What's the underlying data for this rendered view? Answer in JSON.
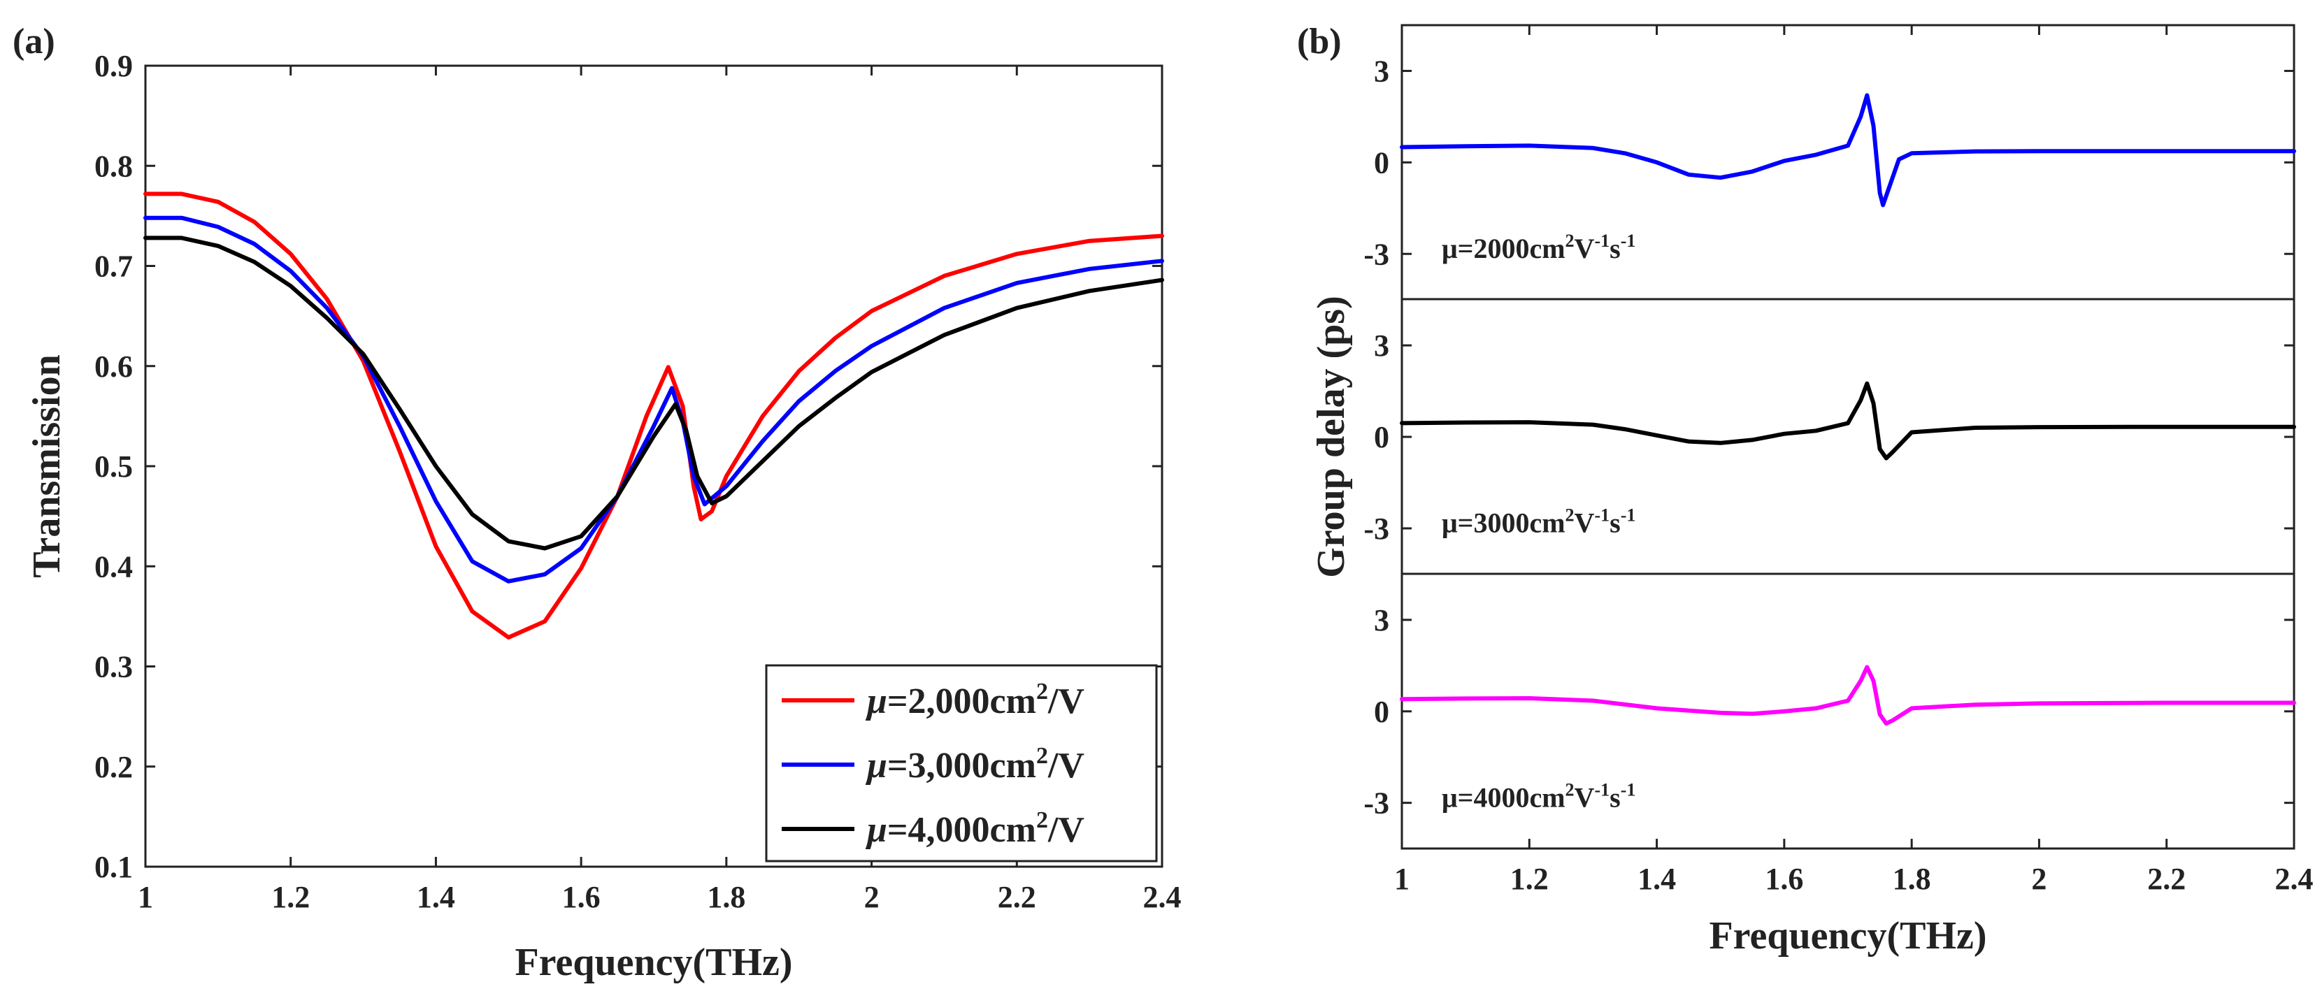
{
  "panel_a_label": "(a)",
  "panel_b_label": "(b)",
  "chart_data": [
    {
      "type": "line",
      "panel": "(a)",
      "xlabel": "Frequency(THz)",
      "ylabel": "Transmission",
      "xlim": [
        1,
        2.4
      ],
      "ylim": [
        0.1,
        0.9
      ],
      "xticks": [
        "1",
        "1.2",
        "1.4",
        "1.6",
        "1.8",
        "2",
        "2.2",
        "2.4"
      ],
      "yticks": [
        "0.1",
        "0.2",
        "0.3",
        "0.4",
        "0.5",
        "0.6",
        "0.7",
        "0.8",
        "0.9"
      ],
      "legend_position": "bottom-right",
      "series": [
        {
          "name": "μ=2,000cm²/V",
          "legend": {
            "prefix": "μ",
            "main": "=2,000cm",
            "sup": "2",
            "post": "/V"
          },
          "color": "#ff0000",
          "points": [
            [
              1,
              0.772
            ],
            [
              1.05,
              0.772
            ],
            [
              1.1,
              0.764
            ],
            [
              1.15,
              0.744
            ],
            [
              1.2,
              0.712
            ],
            [
              1.25,
              0.667
            ],
            [
              1.3,
              0.605
            ],
            [
              1.35,
              0.515
            ],
            [
              1.4,
              0.42
            ],
            [
              1.45,
              0.355
            ],
            [
              1.5,
              0.329
            ],
            [
              1.55,
              0.345
            ],
            [
              1.6,
              0.398
            ],
            [
              1.65,
              0.47
            ],
            [
              1.69,
              0.55
            ],
            [
              1.72,
              0.599
            ],
            [
              1.74,
              0.56
            ],
            [
              1.755,
              0.48
            ],
            [
              1.765,
              0.447
            ],
            [
              1.78,
              0.455
            ],
            [
              1.8,
              0.49
            ],
            [
              1.85,
              0.55
            ],
            [
              1.9,
              0.595
            ],
            [
              1.95,
              0.628
            ],
            [
              2,
              0.655
            ],
            [
              2.1,
              0.69
            ],
            [
              2.2,
              0.712
            ],
            [
              2.3,
              0.725
            ],
            [
              2.4,
              0.73
            ]
          ]
        },
        {
          "name": "μ=3,000cm²/V",
          "legend": {
            "prefix": "μ",
            "main": "=3,000cm",
            "sup": "2",
            "post": "/V"
          },
          "color": "#0000ff",
          "points": [
            [
              1,
              0.748
            ],
            [
              1.05,
              0.748
            ],
            [
              1.1,
              0.739
            ],
            [
              1.15,
              0.722
            ],
            [
              1.2,
              0.695
            ],
            [
              1.25,
              0.658
            ],
            [
              1.3,
              0.61
            ],
            [
              1.35,
              0.54
            ],
            [
              1.4,
              0.465
            ],
            [
              1.45,
              0.405
            ],
            [
              1.5,
              0.385
            ],
            [
              1.55,
              0.392
            ],
            [
              1.6,
              0.418
            ],
            [
              1.65,
              0.47
            ],
            [
              1.7,
              0.54
            ],
            [
              1.725,
              0.578
            ],
            [
              1.74,
              0.545
            ],
            [
              1.755,
              0.49
            ],
            [
              1.77,
              0.462
            ],
            [
              1.8,
              0.48
            ],
            [
              1.85,
              0.525
            ],
            [
              1.9,
              0.565
            ],
            [
              1.95,
              0.595
            ],
            [
              2,
              0.62
            ],
            [
              2.1,
              0.658
            ],
            [
              2.2,
              0.683
            ],
            [
              2.3,
              0.697
            ],
            [
              2.4,
              0.705
            ]
          ]
        },
        {
          "name": "μ=4,000cm²/V",
          "legend": {
            "prefix": "μ",
            "main": "=4,000cm",
            "sup": "2",
            "post": "/V"
          },
          "color": "#000000",
          "points": [
            [
              1,
              0.728
            ],
            [
              1.05,
              0.728
            ],
            [
              1.1,
              0.72
            ],
            [
              1.15,
              0.704
            ],
            [
              1.2,
              0.68
            ],
            [
              1.25,
              0.648
            ],
            [
              1.3,
              0.612
            ],
            [
              1.35,
              0.557
            ],
            [
              1.4,
              0.5
            ],
            [
              1.45,
              0.452
            ],
            [
              1.5,
              0.425
            ],
            [
              1.55,
              0.418
            ],
            [
              1.6,
              0.43
            ],
            [
              1.65,
              0.47
            ],
            [
              1.7,
              0.53
            ],
            [
              1.73,
              0.562
            ],
            [
              1.745,
              0.535
            ],
            [
              1.76,
              0.49
            ],
            [
              1.78,
              0.463
            ],
            [
              1.8,
              0.47
            ],
            [
              1.85,
              0.505
            ],
            [
              1.9,
              0.54
            ],
            [
              1.95,
              0.568
            ],
            [
              2,
              0.594
            ],
            [
              2.1,
              0.631
            ],
            [
              2.2,
              0.658
            ],
            [
              2.3,
              0.675
            ],
            [
              2.4,
              0.686
            ]
          ]
        }
      ]
    },
    {
      "type": "line",
      "panel": "(b)",
      "xlabel": "Frequency(THz)",
      "ylabel": "Group delay (ps)",
      "xlim": [
        1,
        2.4
      ],
      "ylim": [
        -4.5,
        4.5
      ],
      "xticks": [
        "1",
        "1.2",
        "1.4",
        "1.6",
        "1.8",
        "2",
        "2.2",
        "2.4"
      ],
      "yticks": [
        "3",
        "0",
        "-3"
      ],
      "series": [
        {
          "name": "μ=2000cm²V⁻¹s⁻¹",
          "annotation": {
            "pre": "μ=2000cm",
            "s1": "2",
            "m": "V",
            "s2": "-1",
            "n": "s",
            "s3": "-1"
          },
          "color": "#0000ff",
          "points": [
            [
              1,
              0.5
            ],
            [
              1.1,
              0.53
            ],
            [
              1.2,
              0.55
            ],
            [
              1.3,
              0.47
            ],
            [
              1.35,
              0.3
            ],
            [
              1.4,
              0.0
            ],
            [
              1.45,
              -0.4
            ],
            [
              1.5,
              -0.5
            ],
            [
              1.55,
              -0.3
            ],
            [
              1.6,
              0.05
            ],
            [
              1.65,
              0.25
            ],
            [
              1.7,
              0.55
            ],
            [
              1.72,
              1.5
            ],
            [
              1.73,
              2.2
            ],
            [
              1.74,
              1.2
            ],
            [
              1.75,
              -1.0
            ],
            [
              1.755,
              -1.4
            ],
            [
              1.76,
              -1.1
            ],
            [
              1.78,
              0.1
            ],
            [
              1.8,
              0.3
            ],
            [
              1.9,
              0.36
            ],
            [
              2,
              0.37
            ],
            [
              2.2,
              0.37
            ],
            [
              2.4,
              0.37
            ]
          ]
        },
        {
          "name": "μ=3000cm²V⁻¹s⁻¹",
          "annotation": {
            "pre": "μ=3000cm",
            "s1": "2",
            "m": "V",
            "s2": "-1",
            "n": "s",
            "s3": "-1"
          },
          "color": "#000000",
          "points": [
            [
              1,
              0.45
            ],
            [
              1.1,
              0.47
            ],
            [
              1.2,
              0.48
            ],
            [
              1.3,
              0.4
            ],
            [
              1.35,
              0.25
            ],
            [
              1.4,
              0.05
            ],
            [
              1.45,
              -0.15
            ],
            [
              1.5,
              -0.2
            ],
            [
              1.55,
              -0.1
            ],
            [
              1.6,
              0.1
            ],
            [
              1.65,
              0.2
            ],
            [
              1.7,
              0.45
            ],
            [
              1.72,
              1.2
            ],
            [
              1.73,
              1.75
            ],
            [
              1.74,
              1.1
            ],
            [
              1.75,
              -0.4
            ],
            [
              1.76,
              -0.7
            ],
            [
              1.77,
              -0.5
            ],
            [
              1.8,
              0.15
            ],
            [
              1.9,
              0.3
            ],
            [
              2,
              0.32
            ],
            [
              2.2,
              0.33
            ],
            [
              2.4,
              0.33
            ]
          ]
        },
        {
          "name": "μ=4000cm²V⁻¹s⁻¹",
          "annotation": {
            "pre": "μ=4000cm",
            "s1": "2",
            "m": "V",
            "s2": "-1",
            "n": "s",
            "s3": "-1"
          },
          "color": "#ff00ff",
          "points": [
            [
              1,
              0.4
            ],
            [
              1.1,
              0.42
            ],
            [
              1.2,
              0.43
            ],
            [
              1.3,
              0.35
            ],
            [
              1.4,
              0.1
            ],
            [
              1.5,
              -0.05
            ],
            [
              1.55,
              -0.08
            ],
            [
              1.6,
              0.0
            ],
            [
              1.65,
              0.1
            ],
            [
              1.7,
              0.35
            ],
            [
              1.72,
              1.0
            ],
            [
              1.73,
              1.45
            ],
            [
              1.74,
              1.0
            ],
            [
              1.75,
              -0.1
            ],
            [
              1.76,
              -0.4
            ],
            [
              1.77,
              -0.3
            ],
            [
              1.8,
              0.1
            ],
            [
              1.9,
              0.22
            ],
            [
              2,
              0.26
            ],
            [
              2.2,
              0.28
            ],
            [
              2.4,
              0.28
            ]
          ]
        }
      ]
    }
  ]
}
